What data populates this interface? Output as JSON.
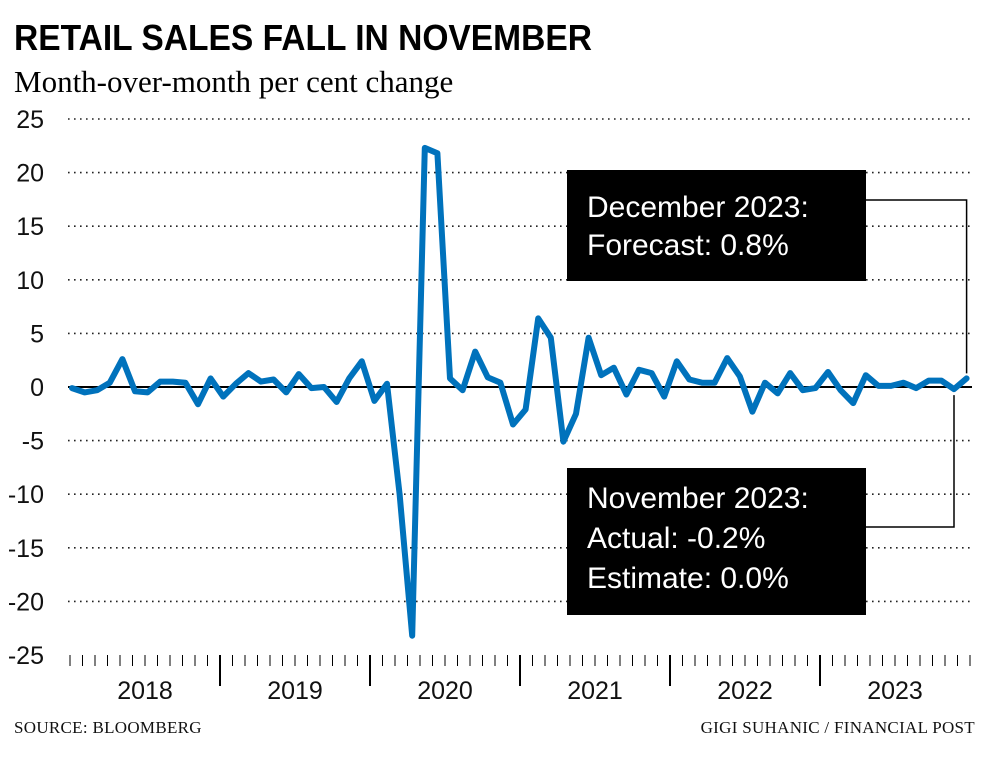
{
  "chart_data": {
    "type": "line",
    "title": "RETAIL SALES FALL IN NOVEMBER",
    "subtitle": "Month-over-month per cent change",
    "xlabel": "",
    "ylabel": "",
    "ylim": [
      -25,
      25
    ],
    "y_ticks": [
      "25",
      "20",
      "15",
      "10",
      "5",
      "0",
      "-5",
      "-10",
      "-15",
      "-20",
      "-25"
    ],
    "x_tick_labels": [
      "2018",
      "2019",
      "2020",
      "2021",
      "2022",
      "2023"
    ],
    "x_start": "2018-01",
    "x_end": "2023-12",
    "frequency": "monthly",
    "grid": "horizontal dotted",
    "line_color": "#0072bc",
    "values": [
      -0.1,
      -0.5,
      -0.3,
      0.4,
      2.6,
      -0.4,
      -0.5,
      0.5,
      0.5,
      0.4,
      -1.6,
      0.8,
      -0.9,
      0.3,
      1.3,
      0.5,
      0.7,
      -0.5,
      1.2,
      -0.1,
      0.0,
      -1.4,
      0.8,
      2.4,
      -1.3,
      0.3,
      -10.0,
      -23.2,
      22.3,
      21.8,
      0.8,
      -0.3,
      3.3,
      0.9,
      0.4,
      -3.5,
      -2.1,
      6.4,
      4.6,
      -5.1,
      -2.5,
      4.6,
      1.1,
      1.8,
      -0.7,
      1.6,
      1.3,
      -0.9,
      2.4,
      0.7,
      0.4,
      0.4,
      2.7,
      1.0,
      -2.3,
      0.4,
      -0.6,
      1.3,
      -0.3,
      -0.1,
      1.4,
      -0.3,
      -1.5,
      1.1,
      0.1,
      0.1,
      0.4,
      -0.1,
      0.6,
      0.6,
      -0.2,
      0.8
    ],
    "annotations": [
      {
        "lines": [
          "December 2023:",
          "Forecast: 0.8%"
        ],
        "points_to": "2023-12"
      },
      {
        "lines": [
          "November 2023:",
          "Actual: -0.2%",
          "Estimate: 0.0%"
        ],
        "points_to": "2023-11"
      }
    ]
  },
  "footer": {
    "source": "SOURCE: BLOOMBERG",
    "credit": "GIGI SUHANIC / FINANCIAL POST"
  }
}
